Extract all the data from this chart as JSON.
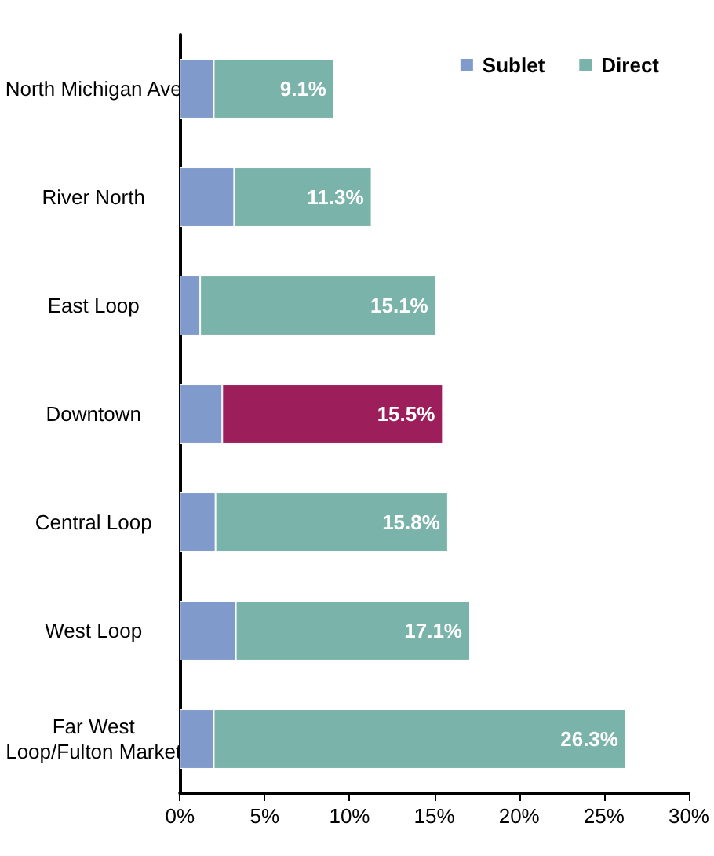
{
  "chart_data": {
    "type": "bar",
    "orientation": "horizontal",
    "stacked": true,
    "categories": [
      "North Michigan Ave",
      "River North",
      "East Loop",
      "Downtown",
      "Central Loop",
      "West Loop",
      "Far West\nLoop/Fulton Market"
    ],
    "series": [
      {
        "name": "Sublet",
        "color": "#7f9acb",
        "values": [
          2.0,
          3.2,
          1.2,
          2.5,
          2.1,
          3.3,
          2.0
        ]
      },
      {
        "name": "Direct",
        "color": "#7ab3a9",
        "colors": [
          "#7ab3a9",
          "#7ab3a9",
          "#7ab3a9",
          "#9c1f5b",
          "#7ab3a9",
          "#7ab3a9",
          "#7ab3a9"
        ],
        "values": [
          7.1,
          8.1,
          13.9,
          13.0,
          13.7,
          13.8,
          24.3
        ]
      }
    ],
    "totals": [
      "9.1%",
      "11.3%",
      "15.1%",
      "15.5%",
      "15.8%",
      "17.1%",
      "26.3%"
    ],
    "xlim": [
      0,
      30
    ],
    "xticks": [
      {
        "value": 0,
        "label": "0%"
      },
      {
        "value": 5,
        "label": "5%"
      },
      {
        "value": 10,
        "label": "10%"
      },
      {
        "value": 15,
        "label": "15%"
      },
      {
        "value": 20,
        "label": "20%"
      },
      {
        "value": 25,
        "label": "25%"
      },
      {
        "value": 30,
        "label": "30%"
      }
    ],
    "grid": false,
    "legend": "top right"
  }
}
